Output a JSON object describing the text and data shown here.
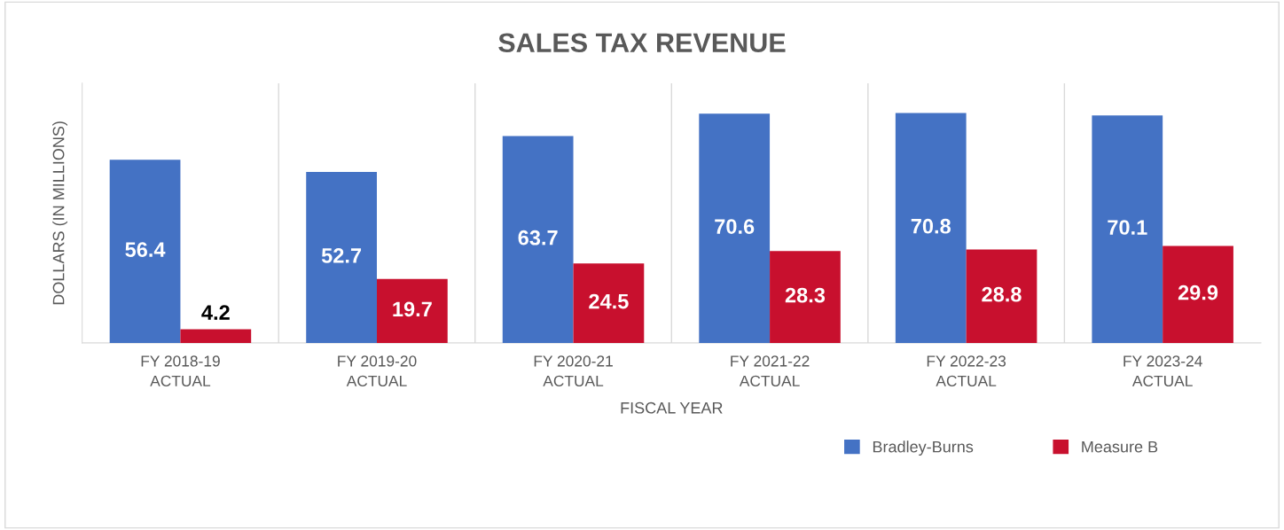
{
  "chart_data": {
    "type": "bar",
    "title": "SALES TAX REVENUE",
    "xlabel": "FISCAL YEAR",
    "ylabel": "DOLLARS (IN MILLIONS)",
    "categories": [
      "FY 2018-19\nACTUAL",
      "FY 2019-20\nACTUAL",
      "FY 2020-21\nACTUAL",
      "FY 2021-22\nACTUAL",
      "FY 2022-23\nACTUAL",
      "FY 2023-24\nACTUAL"
    ],
    "series": [
      {
        "name": "Bradley-Burns",
        "color": "#4472c4",
        "values": [
          56.4,
          52.7,
          63.7,
          70.6,
          70.8,
          70.1
        ]
      },
      {
        "name": "Measure B",
        "color": "#c8102e",
        "values": [
          4.2,
          19.7,
          24.5,
          28.3,
          28.8,
          29.9
        ]
      }
    ],
    "ylim": [
      0,
      80
    ],
    "data_labels": true,
    "grid": "x",
    "legend": "bottom right",
    "tick_labels": "x"
  }
}
